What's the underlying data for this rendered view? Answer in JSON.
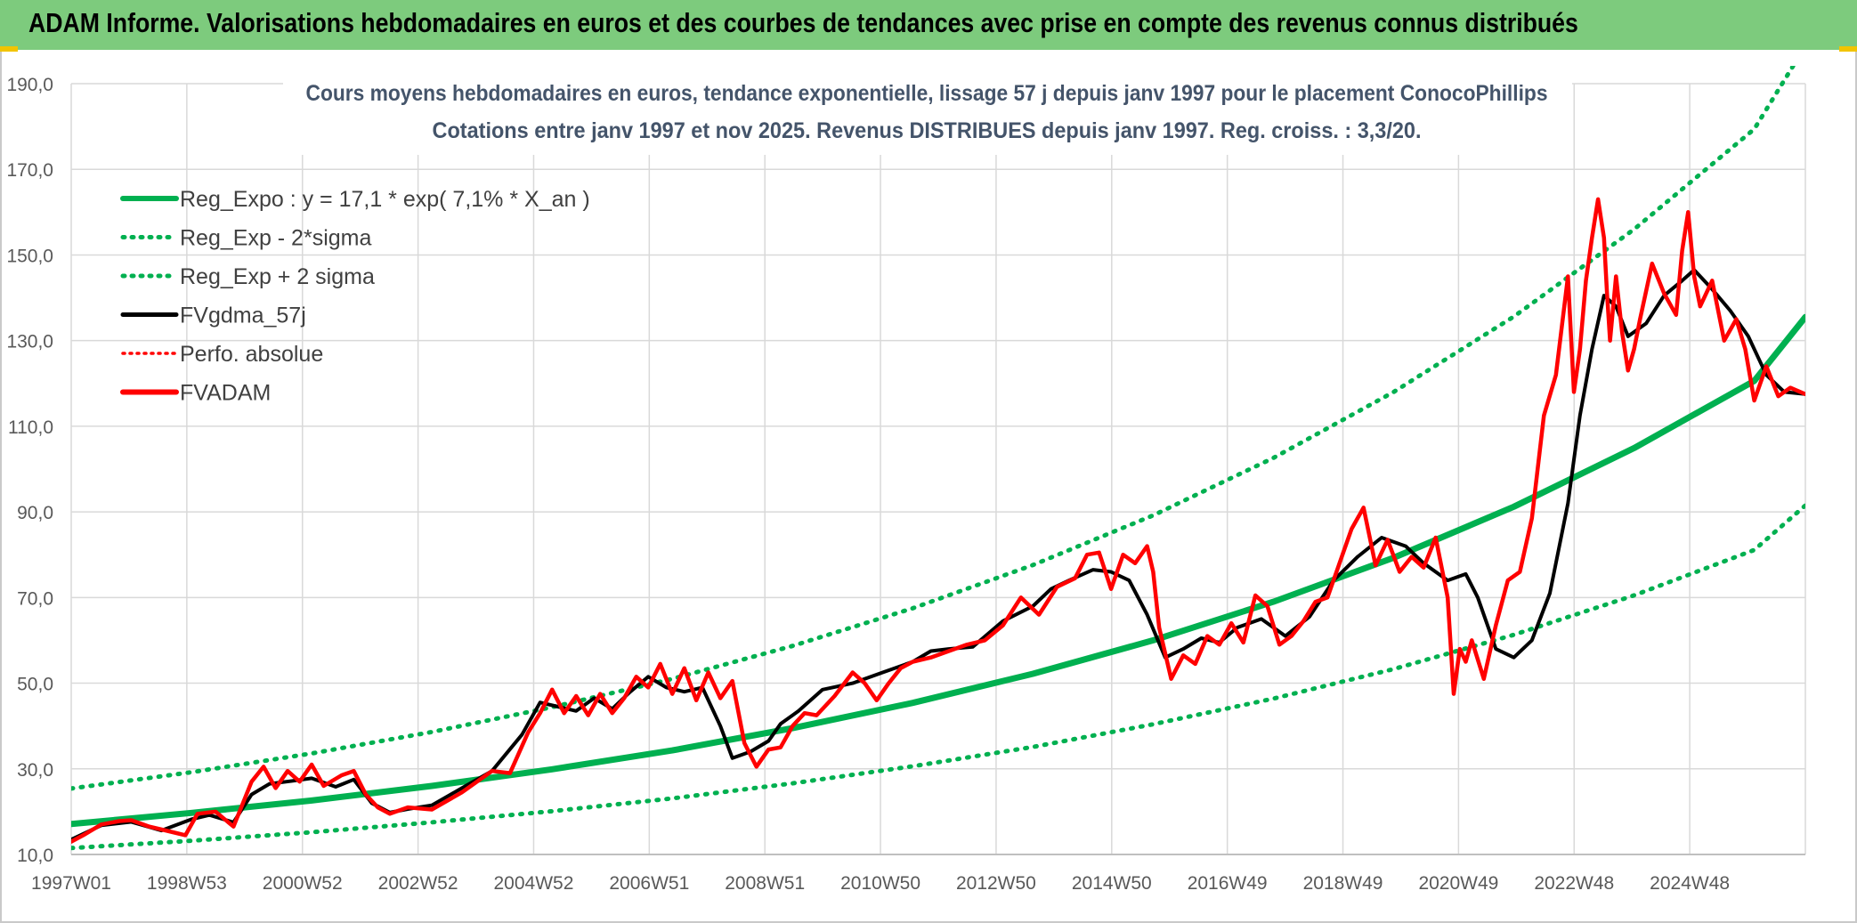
{
  "header": {
    "title": "ADAM Informe. Valorisations hebdomadaires en euros et des courbes de tendances avec prise en compte des revenus connus distribués"
  },
  "colors": {
    "banner": "#7dcb7d",
    "regression": "#00b050",
    "actual": "#ff0000",
    "smoothed": "#000000",
    "grid": "#d9d9d9",
    "title": "#44546a"
  },
  "chart_data": {
    "type": "line",
    "title": "Cours moyens hebdomadaires en euros, tendance exponentielle, lissage 57 j depuis janv 1997 pour le placement ConocoPhillips",
    "subtitle": "Cotations entre janv 1997 et nov 2025. Revenus DISTRIBUES depuis janv 1997. Reg. croiss. : 3,3/20.",
    "xlabel": "",
    "ylabel": "",
    "ylim": [
      10,
      190
    ],
    "yticks": [
      "10,0",
      "30,0",
      "50,0",
      "70,0",
      "90,0",
      "110,0",
      "130,0",
      "150,0",
      "170,0",
      "190,0"
    ],
    "xlim": [
      1997.0,
      2025.85
    ],
    "xtick_labels": [
      "1997W01",
      "1998W53",
      "2000W52",
      "2002W52",
      "2004W52",
      "2006W51",
      "2008W51",
      "2010W50",
      "2012W50",
      "2014W50",
      "2016W49",
      "2018W49",
      "2020W49",
      "2022W48",
      "2024W48"
    ],
    "grid": true,
    "legend_position": "top-left",
    "legend": [
      {
        "label": "Reg_Expo : y = 17,1 * exp( 7,1% *  X_an )",
        "style": "solid",
        "color": "#00b050"
      },
      {
        "label": "Reg_Exp - 2*sigma",
        "style": "dotted",
        "color": "#00b050"
      },
      {
        "label": "Reg_Exp + 2 sigma",
        "style": "dotted",
        "color": "#00b050"
      },
      {
        "label": "FVgdma_57j",
        "style": "solid",
        "color": "#000000"
      },
      {
        "label": "Perfo. absolue",
        "style": "dotted",
        "color": "#ff0000"
      },
      {
        "label": "FVADAM",
        "style": "solid",
        "color": "#ff0000"
      }
    ],
    "series": [
      {
        "name": "Reg_Expo : y = 17,1 * exp( 7,1% *  X_an )",
        "kind": "regression",
        "x": [
          1997,
          1999,
          2001,
          2003,
          2005,
          2007,
          2009,
          2011,
          2013,
          2015,
          2017,
          2019,
          2021,
          2023,
          2025,
          2025.85
        ],
        "y": [
          17.1,
          19.7,
          22.6,
          26.0,
          29.9,
          34.3,
          39.5,
          45.4,
          52.2,
          60.0,
          69.0,
          79.3,
          91.2,
          104.9,
          120.6,
          135.5
        ]
      },
      {
        "name": "Reg_Exp - 2*sigma",
        "kind": "lower",
        "x": [
          1997,
          1999,
          2001,
          2003,
          2005,
          2007,
          2009,
          2011,
          2013,
          2015,
          2017,
          2019,
          2021,
          2023,
          2025,
          2025.85
        ],
        "y": [
          11.5,
          13.2,
          15.2,
          17.5,
          20.1,
          23.1,
          26.6,
          30.6,
          35.1,
          40.4,
          46.4,
          53.3,
          61.3,
          70.5,
          81.1,
          91.5
        ]
      },
      {
        "name": "Reg_Exp + 2 sigma",
        "kind": "upper",
        "x": [
          1997,
          1999,
          2001,
          2003,
          2005,
          2007,
          2009,
          2011,
          2013,
          2015,
          2017,
          2019,
          2021,
          2023,
          2025,
          2025.85
        ],
        "y": [
          25.4,
          29.2,
          33.6,
          38.6,
          44.4,
          51.0,
          58.7,
          67.5,
          77.6,
          89.2,
          102.6,
          118.0,
          135.6,
          156.0,
          179.4,
          198.8
        ]
      },
      {
        "name": "FVgdma_57j",
        "kind": "smoothed",
        "x": [
          1997.0,
          1997.5,
          1998.0,
          1998.5,
          1999.0,
          1999.3,
          1999.7,
          2000.0,
          2000.3,
          2000.7,
          2001.0,
          2001.4,
          2001.7,
          2002.0,
          2002.3,
          2002.6,
          2003.0,
          2003.5,
          2004.0,
          2004.5,
          2004.8,
          2005.1,
          2005.4,
          2005.7,
          2006.0,
          2006.3,
          2006.6,
          2006.9,
          2007.2,
          2007.5,
          2007.8,
          2008.0,
          2008.3,
          2008.6,
          2008.8,
          2009.1,
          2009.5,
          2010.0,
          2010.5,
          2011.0,
          2011.3,
          2011.6,
          2012.0,
          2012.5,
          2013.0,
          2013.3,
          2013.6,
          2014.0,
          2014.3,
          2014.6,
          2014.9,
          2015.2,
          2015.5,
          2015.8,
          2016.1,
          2016.4,
          2016.8,
          2017.2,
          2017.6,
          2018.0,
          2018.4,
          2018.8,
          2019.2,
          2019.5,
          2019.9,
          2020.2,
          2020.4,
          2020.7,
          2021.0,
          2021.3,
          2021.6,
          2021.9,
          2022.1,
          2022.3,
          2022.5,
          2022.7,
          2022.9,
          2023.2,
          2023.5,
          2023.8,
          2024.0,
          2024.3,
          2024.6,
          2024.9,
          2025.2,
          2025.5,
          2025.85
        ],
        "y": [
          13.5,
          16.8,
          17.6,
          15.6,
          18.2,
          19.2,
          17.5,
          24.0,
          26.5,
          27.2,
          27.8,
          25.8,
          27.5,
          22.0,
          19.8,
          20.6,
          21.5,
          25.5,
          29.5,
          38.0,
          45.5,
          44.5,
          43.5,
          46.5,
          44.0,
          48.0,
          51.5,
          49.0,
          48.0,
          49.0,
          40.0,
          32.5,
          34.0,
          36.5,
          40.5,
          43.5,
          48.5,
          50.0,
          52.5,
          55.0,
          57.5,
          58.0,
          58.5,
          64.5,
          68.0,
          72.0,
          74.0,
          76.5,
          76.0,
          74.0,
          66.0,
          56.0,
          58.0,
          60.5,
          59.5,
          63.0,
          65.0,
          61.0,
          65.5,
          74.0,
          79.5,
          84.0,
          82.0,
          78.0,
          74.0,
          75.5,
          70.0,
          58.0,
          56.0,
          60.0,
          71.0,
          92.0,
          112.5,
          128.0,
          140.5,
          138.0,
          131.0,
          134.0,
          140.5,
          144.0,
          146.5,
          142.0,
          137.0,
          131.0,
          122.0,
          118.0,
          117.5
        ]
      },
      {
        "name": "FVADAM",
        "kind": "actual",
        "x": [
          1997.0,
          1997.2,
          1997.5,
          1997.8,
          1998.0,
          1998.3,
          1998.6,
          1998.9,
          1999.1,
          1999.4,
          1999.7,
          2000.0,
          2000.2,
          2000.4,
          2000.6,
          2000.8,
          2001.0,
          2001.2,
          2001.5,
          2001.7,
          2001.9,
          2002.1,
          2002.3,
          2002.6,
          2003.0,
          2003.5,
          2004.0,
          2004.3,
          2004.6,
          2004.8,
          2005.0,
          2005.2,
          2005.4,
          2005.6,
          2005.8,
          2006.0,
          2006.2,
          2006.4,
          2006.6,
          2006.8,
          2007.0,
          2007.2,
          2007.4,
          2007.6,
          2007.8,
          2008.0,
          2008.2,
          2008.4,
          2008.6,
          2008.8,
          2009.0,
          2009.2,
          2009.4,
          2009.7,
          2010.0,
          2010.2,
          2010.4,
          2010.6,
          2010.8,
          2011.0,
          2011.3,
          2011.6,
          2011.9,
          2012.2,
          2012.5,
          2012.8,
          2013.1,
          2013.4,
          2013.7,
          2013.9,
          2014.1,
          2014.3,
          2014.5,
          2014.7,
          2014.9,
          2015.0,
          2015.1,
          2015.3,
          2015.5,
          2015.7,
          2015.9,
          2016.1,
          2016.3,
          2016.5,
          2016.7,
          2016.9,
          2017.1,
          2017.3,
          2017.5,
          2017.7,
          2017.9,
          2018.1,
          2018.3,
          2018.5,
          2018.7,
          2018.9,
          2019.1,
          2019.3,
          2019.5,
          2019.7,
          2019.9,
          2020.0,
          2020.1,
          2020.2,
          2020.3,
          2020.5,
          2020.7,
          2020.9,
          2021.1,
          2021.3,
          2021.5,
          2021.7,
          2021.9,
          2022.0,
          2022.1,
          2022.2,
          2022.3,
          2022.4,
          2022.5,
          2022.55,
          2022.6,
          2022.7,
          2022.8,
          2022.9,
          2023.0,
          2023.1,
          2023.3,
          2023.5,
          2023.7,
          2023.8,
          2023.9,
          2024.0,
          2024.1,
          2024.3,
          2024.5,
          2024.7,
          2024.85,
          2025.0,
          2025.2,
          2025.4,
          2025.6,
          2025.85
        ],
        "y": [
          13.0,
          14.5,
          17.0,
          17.8,
          18.0,
          16.5,
          15.5,
          14.5,
          19.5,
          20.0,
          16.5,
          27.0,
          30.5,
          25.5,
          29.5,
          27.0,
          31.0,
          26.0,
          28.5,
          29.5,
          24.0,
          21.0,
          19.5,
          21.0,
          20.5,
          24.5,
          29.5,
          29.0,
          38.5,
          43.0,
          48.5,
          43.0,
          47.0,
          42.5,
          47.5,
          43.0,
          46.5,
          51.5,
          49.0,
          54.5,
          47.5,
          53.5,
          46.0,
          52.5,
          46.5,
          50.5,
          36.0,
          30.5,
          34.5,
          35.0,
          40.0,
          43.0,
          42.5,
          47.0,
          52.5,
          50.0,
          46.0,
          50.0,
          53.5,
          55.0,
          56.0,
          57.5,
          59.0,
          60.0,
          63.5,
          70.0,
          66.0,
          72.5,
          74.5,
          80.0,
          80.5,
          72.0,
          80.0,
          78.0,
          82.0,
          76.0,
          63.0,
          51.0,
          56.5,
          54.5,
          61.0,
          59.0,
          64.0,
          59.5,
          70.5,
          68.0,
          59.0,
          61.0,
          64.5,
          69.0,
          70.0,
          78.0,
          86.0,
          91.0,
          77.5,
          83.5,
          76.0,
          79.5,
          77.0,
          84.0,
          70.0,
          47.5,
          58.0,
          55.0,
          60.0,
          51.0,
          63.5,
          74.0,
          76.0,
          88.5,
          112.5,
          122.0,
          145.0,
          118.0,
          128.0,
          144.0,
          154.0,
          163.0,
          154.0,
          141.0,
          130.0,
          145.0,
          132.0,
          123.0,
          128.0,
          135.0,
          148.0,
          141.0,
          136.0,
          151.0,
          160.0,
          145.0,
          138.0,
          144.0,
          130.0,
          135.0,
          128.0,
          116.0,
          124.0,
          117.0,
          119.0,
          117.5
        ]
      }
    ]
  }
}
